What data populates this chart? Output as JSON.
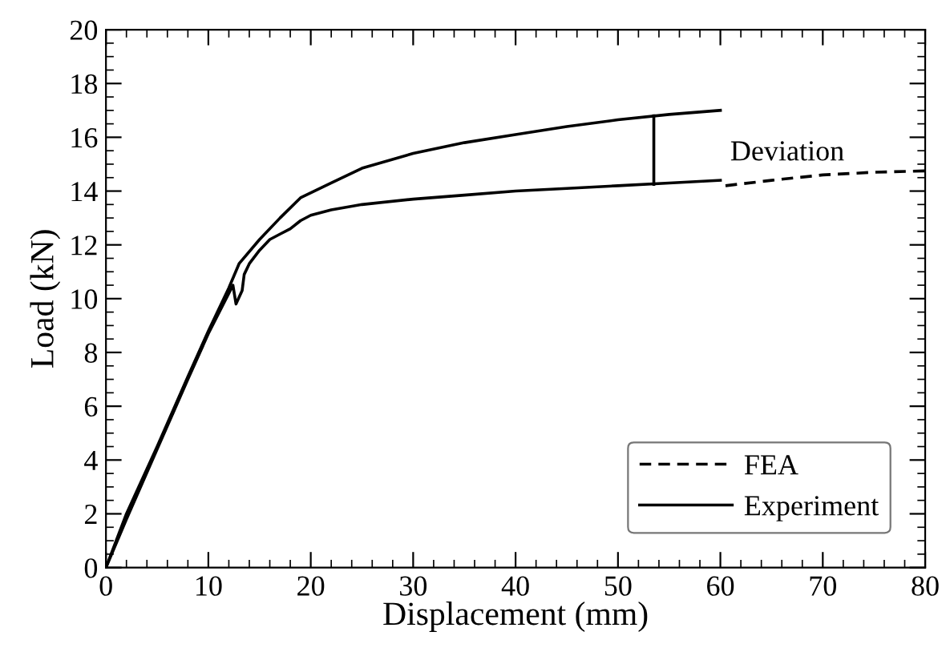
{
  "chart_data": {
    "type": "line",
    "xlabel": "Displacement (mm)",
    "ylabel": "Load (kN)",
    "xlim": [
      0,
      80
    ],
    "xticks": [
      0,
      10,
      20,
      30,
      40,
      50,
      60,
      70,
      80
    ],
    "ylim": [
      0,
      20
    ],
    "yticks": [
      0,
      2,
      4,
      6,
      8,
      10,
      12,
      14,
      16,
      18,
      20
    ],
    "grid": false,
    "legend": "bottom right",
    "marker": "none",
    "annotations": [
      "Deviation"
    ],
    "series": [
      {
        "name": "FEA",
        "color": "#000000",
        "line_style": "dashed",
        "x": [
          60.5,
          65,
          70,
          75,
          80
        ],
        "values": [
          14.2,
          14.4,
          14.6,
          14.7,
          14.75
        ]
      },
      {
        "name": "Experiment",
        "color": "#000000",
        "line_style": "solid",
        "x": [
          0,
          2,
          5,
          8,
          10,
          12,
          12.4,
          12.7,
          13.3,
          13.5,
          14,
          15,
          16,
          17,
          18,
          19,
          20,
          22,
          25,
          30,
          35,
          40,
          45,
          50,
          55,
          60
        ],
        "values": [
          0,
          1.8,
          4.4,
          7.0,
          8.7,
          10.2,
          10.5,
          9.8,
          10.3,
          10.9,
          11.3,
          11.8,
          12.2,
          12.4,
          12.6,
          12.9,
          13.1,
          13.3,
          13.5,
          13.7,
          13.85,
          14.0,
          14.1,
          14.2,
          14.3,
          14.4
        ]
      },
      {
        "color": "#000000",
        "line_style": "solid",
        "x": [
          0,
          2,
          5,
          8,
          10,
          12,
          13,
          15,
          17,
          19,
          22,
          25,
          30,
          35,
          40,
          45,
          50,
          55,
          60
        ],
        "values": [
          0,
          2.0,
          4.5,
          7.1,
          8.8,
          10.4,
          11.3,
          12.2,
          13.0,
          13.75,
          14.3,
          14.85,
          15.4,
          15.8,
          16.1,
          16.4,
          16.65,
          16.85,
          17.0
        ]
      },
      {
        "color": "#000000",
        "line_style": "solid",
        "x": [
          53.5,
          53.5
        ],
        "values": [
          14.25,
          16.8
        ]
      }
    ]
  }
}
